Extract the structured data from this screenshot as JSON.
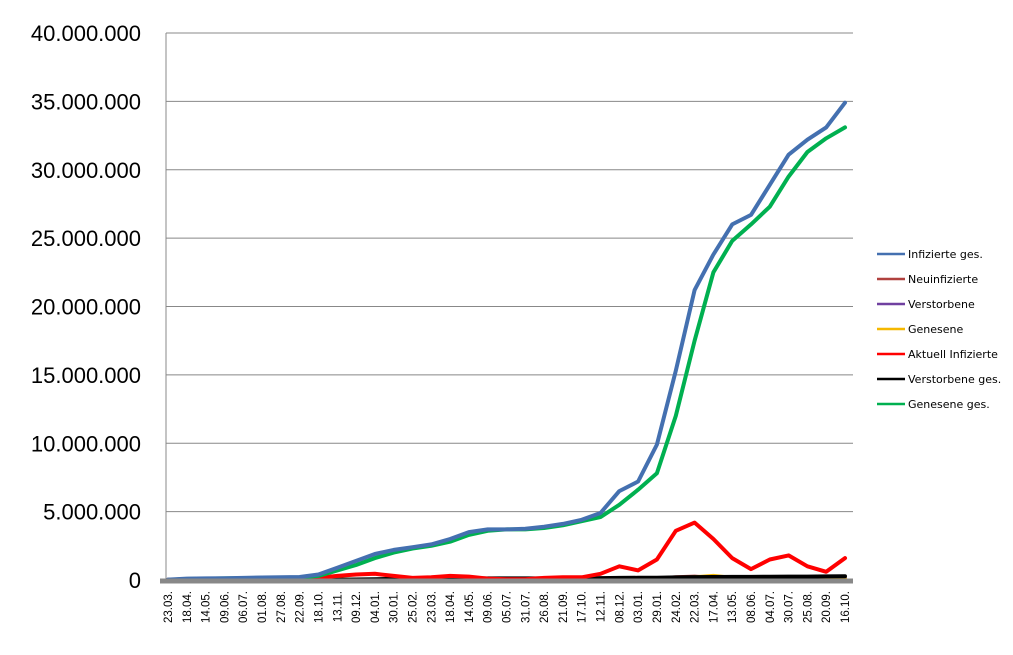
{
  "chart_data": {
    "type": "line",
    "title": "",
    "xlabel": "",
    "ylabel": "",
    "ylim": [
      0,
      40000000
    ],
    "y_ticks": [
      0,
      5000000,
      10000000,
      15000000,
      20000000,
      25000000,
      30000000,
      35000000,
      40000000
    ],
    "y_tick_labels": [
      "0",
      "5.000.000",
      "10.000.000",
      "15.000.000",
      "20.000.000",
      "25.000.000",
      "30.000.000",
      "35.000.000",
      "40.000.000"
    ],
    "grid": "horizontal",
    "legend_position": "right",
    "categories": [
      "23.03.",
      "18.04.",
      "14.05.",
      "09.06.",
      "06.07.",
      "01.08.",
      "27.08.",
      "22.09.",
      "18.10.",
      "13.11.",
      "09.12.",
      "04.01.",
      "30.01.",
      "25.02.",
      "23.03.",
      "18.04.",
      "14.05.",
      "09.06.",
      "05.07.",
      "31.07.",
      "26.08.",
      "21.09.",
      "17.10.",
      "12.11.",
      "08.12.",
      "03.01.",
      "29.01.",
      "24.02.",
      "22.03.",
      "17.04.",
      "13.05.",
      "08.06.",
      "04.07.",
      "30.07.",
      "25.08.",
      "20.09.",
      "16.10."
    ],
    "series": [
      {
        "name": "Infizierte ges.",
        "color": "#4470b0",
        "values": [
          0.03,
          0.1,
          0.12,
          0.13,
          0.15,
          0.18,
          0.2,
          0.22,
          0.4,
          0.9,
          1.4,
          1.9,
          2.2,
          2.4,
          2.6,
          3.0,
          3.5,
          3.7,
          3.7,
          3.75,
          3.9,
          4.1,
          4.4,
          4.9,
          6.5,
          7.2,
          9.9,
          15.3,
          21.2,
          23.8,
          26.0,
          26.7,
          28.9,
          31.1,
          32.2,
          33.1,
          34.9
        ]
      },
      {
        "name": "Neuinfizierte",
        "color": "#b0413e",
        "values": [
          0,
          0.005,
          0.002,
          0.001,
          0.001,
          0.002,
          0.003,
          0.005,
          0.02,
          0.03,
          0.03,
          0.02,
          0.01,
          0.01,
          0.02,
          0.02,
          0.01,
          0.005,
          0.002,
          0.003,
          0.01,
          0.01,
          0.02,
          0.04,
          0.06,
          0.04,
          0.1,
          0.2,
          0.25,
          0.15,
          0.05,
          0.04,
          0.1,
          0.1,
          0.05,
          0.04,
          0.1
        ]
      },
      {
        "name": "Verstorbene",
        "color": "#7040a0",
        "values": [
          0,
          0,
          0,
          0,
          0,
          0,
          0,
          0,
          0.001,
          0.002,
          0.003,
          0.003,
          0.002,
          0.001,
          0.001,
          0.001,
          0.001,
          0,
          0,
          0,
          0,
          0,
          0.001,
          0.002,
          0.003,
          0.003,
          0.004,
          0.006,
          0.008,
          0.006,
          0.003,
          0.002,
          0.003,
          0.003,
          0.002,
          0.002,
          0.003
        ]
      },
      {
        "name": "Genesene",
        "color": "#f5b800",
        "values": [
          0,
          0.002,
          0.003,
          0.002,
          0.001,
          0.001,
          0.002,
          0.003,
          0.01,
          0.02,
          0.02,
          0.03,
          0.02,
          0.01,
          0.01,
          0.02,
          0.02,
          0.01,
          0.004,
          0.002,
          0.004,
          0.01,
          0.01,
          0.02,
          0.05,
          0.06,
          0.05,
          0.12,
          0.2,
          0.3,
          0.15,
          0.06,
          0.05,
          0.09,
          0.07,
          0.04,
          0.05
        ]
      },
      {
        "name": "Aktuell Infizierte",
        "color": "#ff0000",
        "values": [
          0.02,
          0.05,
          0.03,
          0.02,
          0.03,
          0.05,
          0.07,
          0.1,
          0.15,
          0.3,
          0.4,
          0.45,
          0.3,
          0.15,
          0.2,
          0.3,
          0.25,
          0.1,
          0.05,
          0.05,
          0.15,
          0.2,
          0.2,
          0.45,
          1.0,
          0.7,
          1.5,
          3.6,
          4.2,
          3.0,
          1.6,
          0.8,
          1.5,
          1.8,
          1.0,
          0.6,
          1.6
        ]
      },
      {
        "name": "Verstorbene ges.",
        "color": "#000000",
        "values": [
          0,
          0.002,
          0.003,
          0.003,
          0.004,
          0.004,
          0.005,
          0.006,
          0.01,
          0.02,
          0.04,
          0.06,
          0.08,
          0.09,
          0.1,
          0.11,
          0.12,
          0.12,
          0.12,
          0.12,
          0.12,
          0.13,
          0.13,
          0.14,
          0.15,
          0.16,
          0.17,
          0.19,
          0.21,
          0.22,
          0.23,
          0.23,
          0.24,
          0.25,
          0.25,
          0.26,
          0.27
        ]
      },
      {
        "name": "Genesene ges.",
        "color": "#00b050",
        "values": [
          0.01,
          0.07,
          0.1,
          0.12,
          0.13,
          0.15,
          0.17,
          0.19,
          0.3,
          0.7,
          1.1,
          1.6,
          2.0,
          2.3,
          2.5,
          2.8,
          3.3,
          3.6,
          3.7,
          3.7,
          3.8,
          4.0,
          4.3,
          4.6,
          5.5,
          6.6,
          7.8,
          12.0,
          17.5,
          22.5,
          24.8,
          26.0,
          27.3,
          29.5,
          31.3,
          32.3,
          33.1
        ]
      }
    ],
    "value_unit_note": "values in millions"
  }
}
